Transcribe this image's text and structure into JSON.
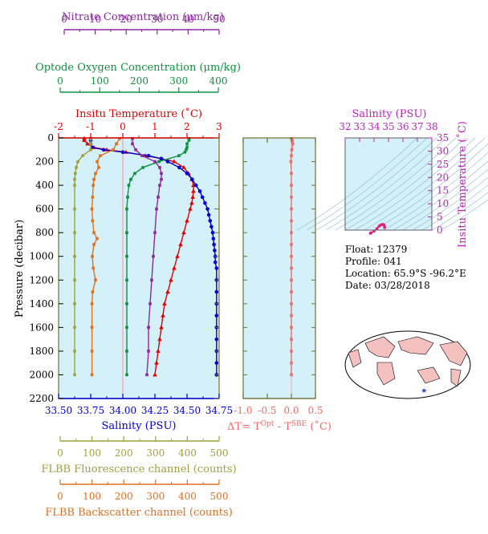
{
  "float_info": {
    "float": "Float:  12379",
    "profile": "Profile:  041",
    "location": "Location:  65.9°S  -96.2°E",
    "date": "Date:  03/28/2018"
  },
  "axes": {
    "nitrate_title": "Nitrate Concentration (μm/kg)",
    "oxygen_title": "Optode Oxygen Concentration (μm/kg)",
    "temp_title": "Insitu Temperature (˚C)",
    "pressure_title": "Pressure (decibar)",
    "salinity_title": "Salinity (PSU)",
    "dt_title": "ΔT= T",
    "dt_sup1": "Opt",
    "dt_mid": " - T",
    "dt_sup2": "SBE",
    "dt_unit": " (˚C)",
    "fl_title": "FLBB Fluorescence channel (counts)",
    "bs_title": "FLBB Backscatter channel (counts)",
    "ts_top_title": "Salinity (PSU)",
    "ts_right_title": "Insitu Temperature (˚C)",
    "nitrate_ticks": [
      "0",
      "10",
      "20",
      "30",
      "40",
      "50"
    ],
    "oxygen_ticks": [
      "0",
      "100",
      "200",
      "300",
      "400"
    ],
    "temp_ticks": [
      "-2",
      "-1",
      "0",
      "1",
      "2",
      "3"
    ],
    "pressure_ticks": [
      "0",
      "200",
      "400",
      "600",
      "800",
      "1000",
      "1200",
      "1400",
      "1600",
      "1800",
      "2000",
      "2200"
    ],
    "salinity_ticks": [
      "33.50",
      "33.75",
      "34.00",
      "34.25",
      "34.50",
      "34.75"
    ],
    "dt_ticks": [
      "-1.0",
      "-0.5",
      "0.0",
      "0.5"
    ],
    "fl_ticks": [
      "0",
      "100",
      "200",
      "300",
      "400",
      "500"
    ],
    "bs_ticks": [
      "0",
      "100",
      "200",
      "300",
      "400",
      "500"
    ],
    "ts_sal_ticks": [
      "32",
      "33",
      "34",
      "35",
      "36",
      "37",
      "38"
    ],
    "ts_temp_ticks": [
      "0",
      "5",
      "10",
      "15",
      "20",
      "25",
      "30",
      "35"
    ]
  },
  "colors": {
    "panel_bg": "#d4f0f8",
    "frame": "#707030",
    "temperature": "#e00000",
    "salinity": "#0000d0",
    "oxygen": "#109040",
    "nitrate": "#8a2aa0",
    "fluorescence": "#a0a040",
    "backscatter": "#e07020",
    "delta_t": "#f06a6a",
    "ts_label": "#c020c0"
  },
  "chart_data": {
    "type": "line",
    "pressure_range": [
      0,
      2200
    ],
    "series": [
      {
        "key": "temperature",
        "unit": "˚C",
        "range": [
          -2,
          3
        ],
        "marker": "triangle",
        "p": [
          5,
          20,
          50,
          80,
          100,
          120,
          150,
          175,
          200,
          250,
          300,
          350,
          400,
          450,
          500,
          550,
          600,
          700,
          800,
          900,
          1000,
          1100,
          1200,
          1300,
          1400,
          1500,
          1600,
          1700,
          1800,
          1900,
          2000
        ],
        "v": [
          -1.2,
          -1.2,
          -1.1,
          -0.9,
          -0.5,
          0.1,
          0.7,
          1.2,
          1.6,
          1.9,
          2.05,
          2.15,
          2.2,
          2.2,
          2.18,
          2.15,
          2.1,
          2.0,
          1.9,
          1.8,
          1.7,
          1.6,
          1.5,
          1.4,
          1.3,
          1.25,
          1.2,
          1.15,
          1.1,
          1.05,
          1.0
        ]
      },
      {
        "key": "salinity",
        "unit": "PSU",
        "range": [
          33.5,
          34.75
        ],
        "marker": "circle",
        "p": [
          5,
          20,
          50,
          80,
          100,
          120,
          150,
          175,
          200,
          250,
          300,
          350,
          400,
          450,
          500,
          550,
          600,
          650,
          700,
          750,
          800,
          850,
          900,
          950,
          1000,
          1050,
          1100,
          1200,
          1300,
          1400,
          1500,
          1600,
          1700,
          1800,
          1900,
          2000
        ],
        "v": [
          33.75,
          33.75,
          33.75,
          33.76,
          33.85,
          34.0,
          34.2,
          34.3,
          34.35,
          34.44,
          34.5,
          34.54,
          34.57,
          34.6,
          34.62,
          34.64,
          34.66,
          34.67,
          34.68,
          34.69,
          34.7,
          34.705,
          34.71,
          34.715,
          34.72,
          34.72,
          34.73,
          34.73,
          34.73,
          34.73,
          34.73,
          34.73,
          34.73,
          34.73,
          34.73,
          34.73
        ]
      },
      {
        "key": "oxygen",
        "unit": "μm/kg",
        "range": [
          0,
          400
        ],
        "marker": "square",
        "p": [
          5,
          20,
          50,
          80,
          100,
          120,
          150,
          200,
          250,
          300,
          350,
          400,
          500,
          600,
          800,
          1000,
          1200,
          1400,
          1600,
          1800,
          2000
        ],
        "v": [
          325,
          325,
          320,
          320,
          318,
          315,
          300,
          250,
          210,
          190,
          180,
          175,
          172,
          170,
          170,
          170,
          170,
          170,
          170,
          170,
          170
        ]
      },
      {
        "key": "nitrate",
        "unit": "μm/kg",
        "range": [
          0,
          50
        ],
        "marker": "square",
        "p": [
          5,
          50,
          100,
          150,
          200,
          250,
          300,
          350,
          400,
          500,
          600,
          800,
          1000,
          1200,
          1400,
          1600,
          1800,
          2000
        ],
        "v": [
          23,
          23,
          24,
          26,
          30,
          31.5,
          32,
          32,
          31.5,
          31,
          30.5,
          30,
          29.5,
          29,
          28.5,
          28,
          28,
          27.5
        ]
      },
      {
        "key": "fluorescence",
        "unit": "counts",
        "range": [
          0,
          500
        ],
        "marker": "square",
        "p": [
          5,
          50,
          100,
          150,
          200,
          250,
          300,
          350,
          400,
          600,
          800,
          1000,
          1200,
          1400,
          1600,
          1800,
          2000
        ],
        "v": [
          100,
          100,
          100,
          75,
          60,
          55,
          52,
          50,
          50,
          50,
          50,
          50,
          50,
          50,
          50,
          50,
          50
        ]
      },
      {
        "key": "backscatter",
        "unit": "counts",
        "range": [
          0,
          500
        ],
        "marker": "square",
        "p": [
          5,
          50,
          100,
          150,
          200,
          250,
          300,
          350,
          400,
          500,
          600,
          700,
          800,
          850,
          900,
          1000,
          1100,
          1200,
          1300,
          1400,
          1600,
          1800,
          2000
        ],
        "v": [
          190,
          180,
          170,
          130,
          120,
          125,
          115,
          110,
          108,
          106,
          104,
          106,
          110,
          120,
          110,
          105,
          108,
          115,
          106,
          104,
          104,
          104,
          104
        ]
      },
      {
        "key": "delta_t",
        "unit": "˚C",
        "range": [
          -1.0,
          0.5
        ],
        "marker": "square",
        "p": [
          5,
          20,
          50,
          100,
          150,
          200,
          300,
          400,
          500,
          600,
          700,
          800,
          900,
          1000,
          1100,
          1200,
          1300,
          1400,
          1500,
          1600,
          1700,
          1800,
          1900,
          2000
        ],
        "v": [
          0.0,
          0.02,
          0.03,
          0.01,
          0.0,
          -0.01,
          0.0,
          0.0,
          0.0,
          0.0,
          0.0,
          0.0,
          0.0,
          0.0,
          0.0,
          0.0,
          0.0,
          0.0,
          0.0,
          0.0,
          0.0,
          0.0,
          0.0,
          0.0
        ]
      }
    ],
    "ts_diagram": {
      "salinity_range": [
        32,
        38
      ],
      "temperature_range": [
        0,
        35
      ],
      "points_sal": [
        33.75,
        33.8,
        34.0,
        34.2,
        34.35,
        34.45,
        34.55,
        34.62,
        34.68,
        34.72,
        34.73
      ],
      "points_temp": [
        -1.2,
        -1.0,
        -0.4,
        0.6,
        1.5,
        1.9,
        2.15,
        2.15,
        2.0,
        1.6,
        1.0
      ]
    }
  }
}
